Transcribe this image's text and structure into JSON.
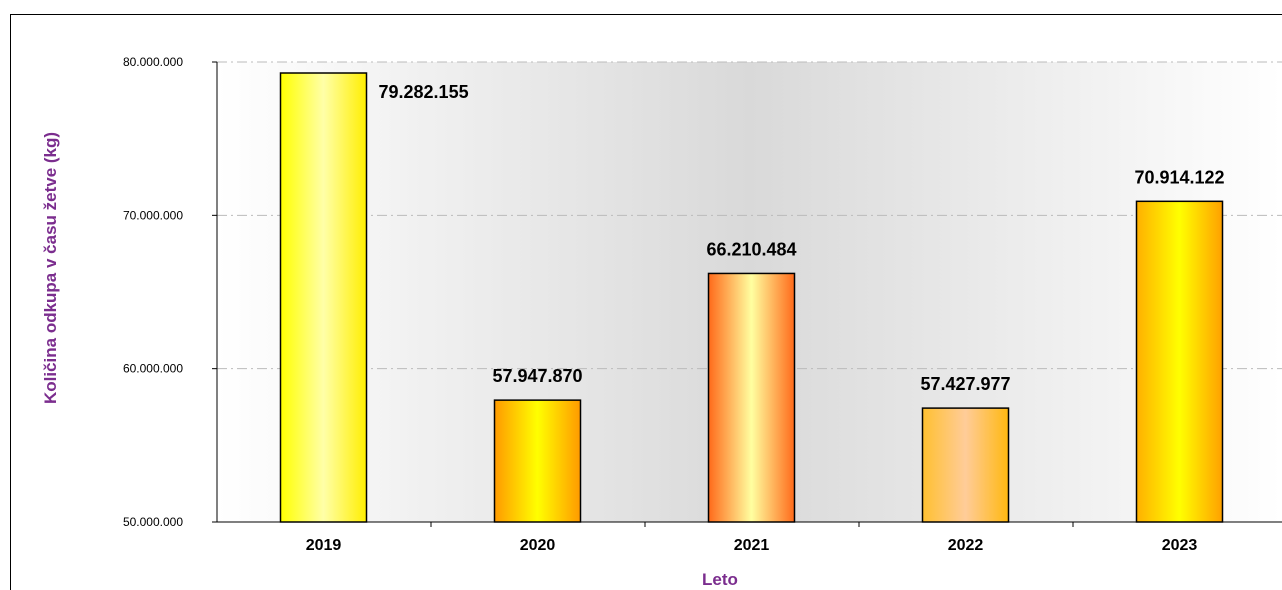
{
  "chart_data": {
    "type": "bar",
    "title": "",
    "xlabel": "Leto",
    "ylabel": "Količina odkupa v času žetve (kg)",
    "ylim": [
      50000000,
      80000000
    ],
    "yticks": [
      50000000,
      60000000,
      70000000,
      80000000
    ],
    "ytick_labels": [
      "50.000.000",
      "60.000.000",
      "70.000.000",
      "80.000.000"
    ],
    "categories": [
      "2019",
      "2020",
      "2021",
      "2022",
      "2023"
    ],
    "values": [
      79282155,
      57947870,
      66210484,
      57427977,
      70914122
    ],
    "value_labels": [
      "79.282.155",
      "57.947.870",
      "66.210.484",
      "57.427.977",
      "70.914.122"
    ],
    "grid": "horizontal dashed",
    "legend": "none",
    "colors": {
      "axis_title": "#7b2d8e",
      "gridline": "#bbbbbb",
      "bars": [
        [
          "#ffff00",
          "#ffffa8",
          "#ffee00"
        ],
        [
          "#ff9a00",
          "#ffff00",
          "#ff9a00"
        ],
        [
          "#ff6a1a",
          "#ffffa0",
          "#ff6a1a"
        ],
        [
          "#ffc030",
          "#ffcc99",
          "#ffb810"
        ],
        [
          "#ffb000",
          "#ffff00",
          "#ffa000"
        ]
      ]
    }
  }
}
